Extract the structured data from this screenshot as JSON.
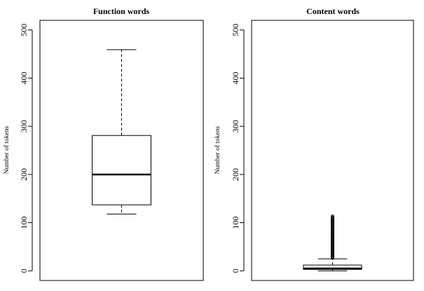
{
  "chart_data": [
    {
      "type": "box",
      "title": "Function words",
      "ylabel": "Number of tokens",
      "ylim": [
        -20,
        520
      ],
      "yticks": [
        "0",
        "100",
        "200",
        "300",
        "400",
        "500"
      ],
      "box": {
        "whisker_low": 118,
        "q1": 137,
        "median": 200,
        "q3": 281,
        "whisker_high": 459
      },
      "outliers": []
    },
    {
      "type": "box",
      "title": "Content words",
      "ylabel": "Number of tokens",
      "ylim": [
        -20,
        520
      ],
      "yticks": [
        "0",
        "100",
        "200",
        "300",
        "400",
        "500"
      ],
      "box": {
        "whisker_low": 0,
        "q1": 3,
        "median": 5,
        "q3": 12,
        "whisker_high": 25
      },
      "outliers": [
        27,
        29,
        31,
        33,
        35,
        37,
        39,
        41,
        43,
        45,
        47,
        49,
        51,
        53,
        55,
        57,
        59,
        61,
        63,
        65,
        67,
        69,
        71,
        73,
        75,
        77,
        79,
        81,
        83,
        85,
        87,
        89,
        91,
        93,
        95,
        97,
        99,
        101,
        103,
        105,
        107,
        109,
        111,
        113
      ]
    }
  ]
}
